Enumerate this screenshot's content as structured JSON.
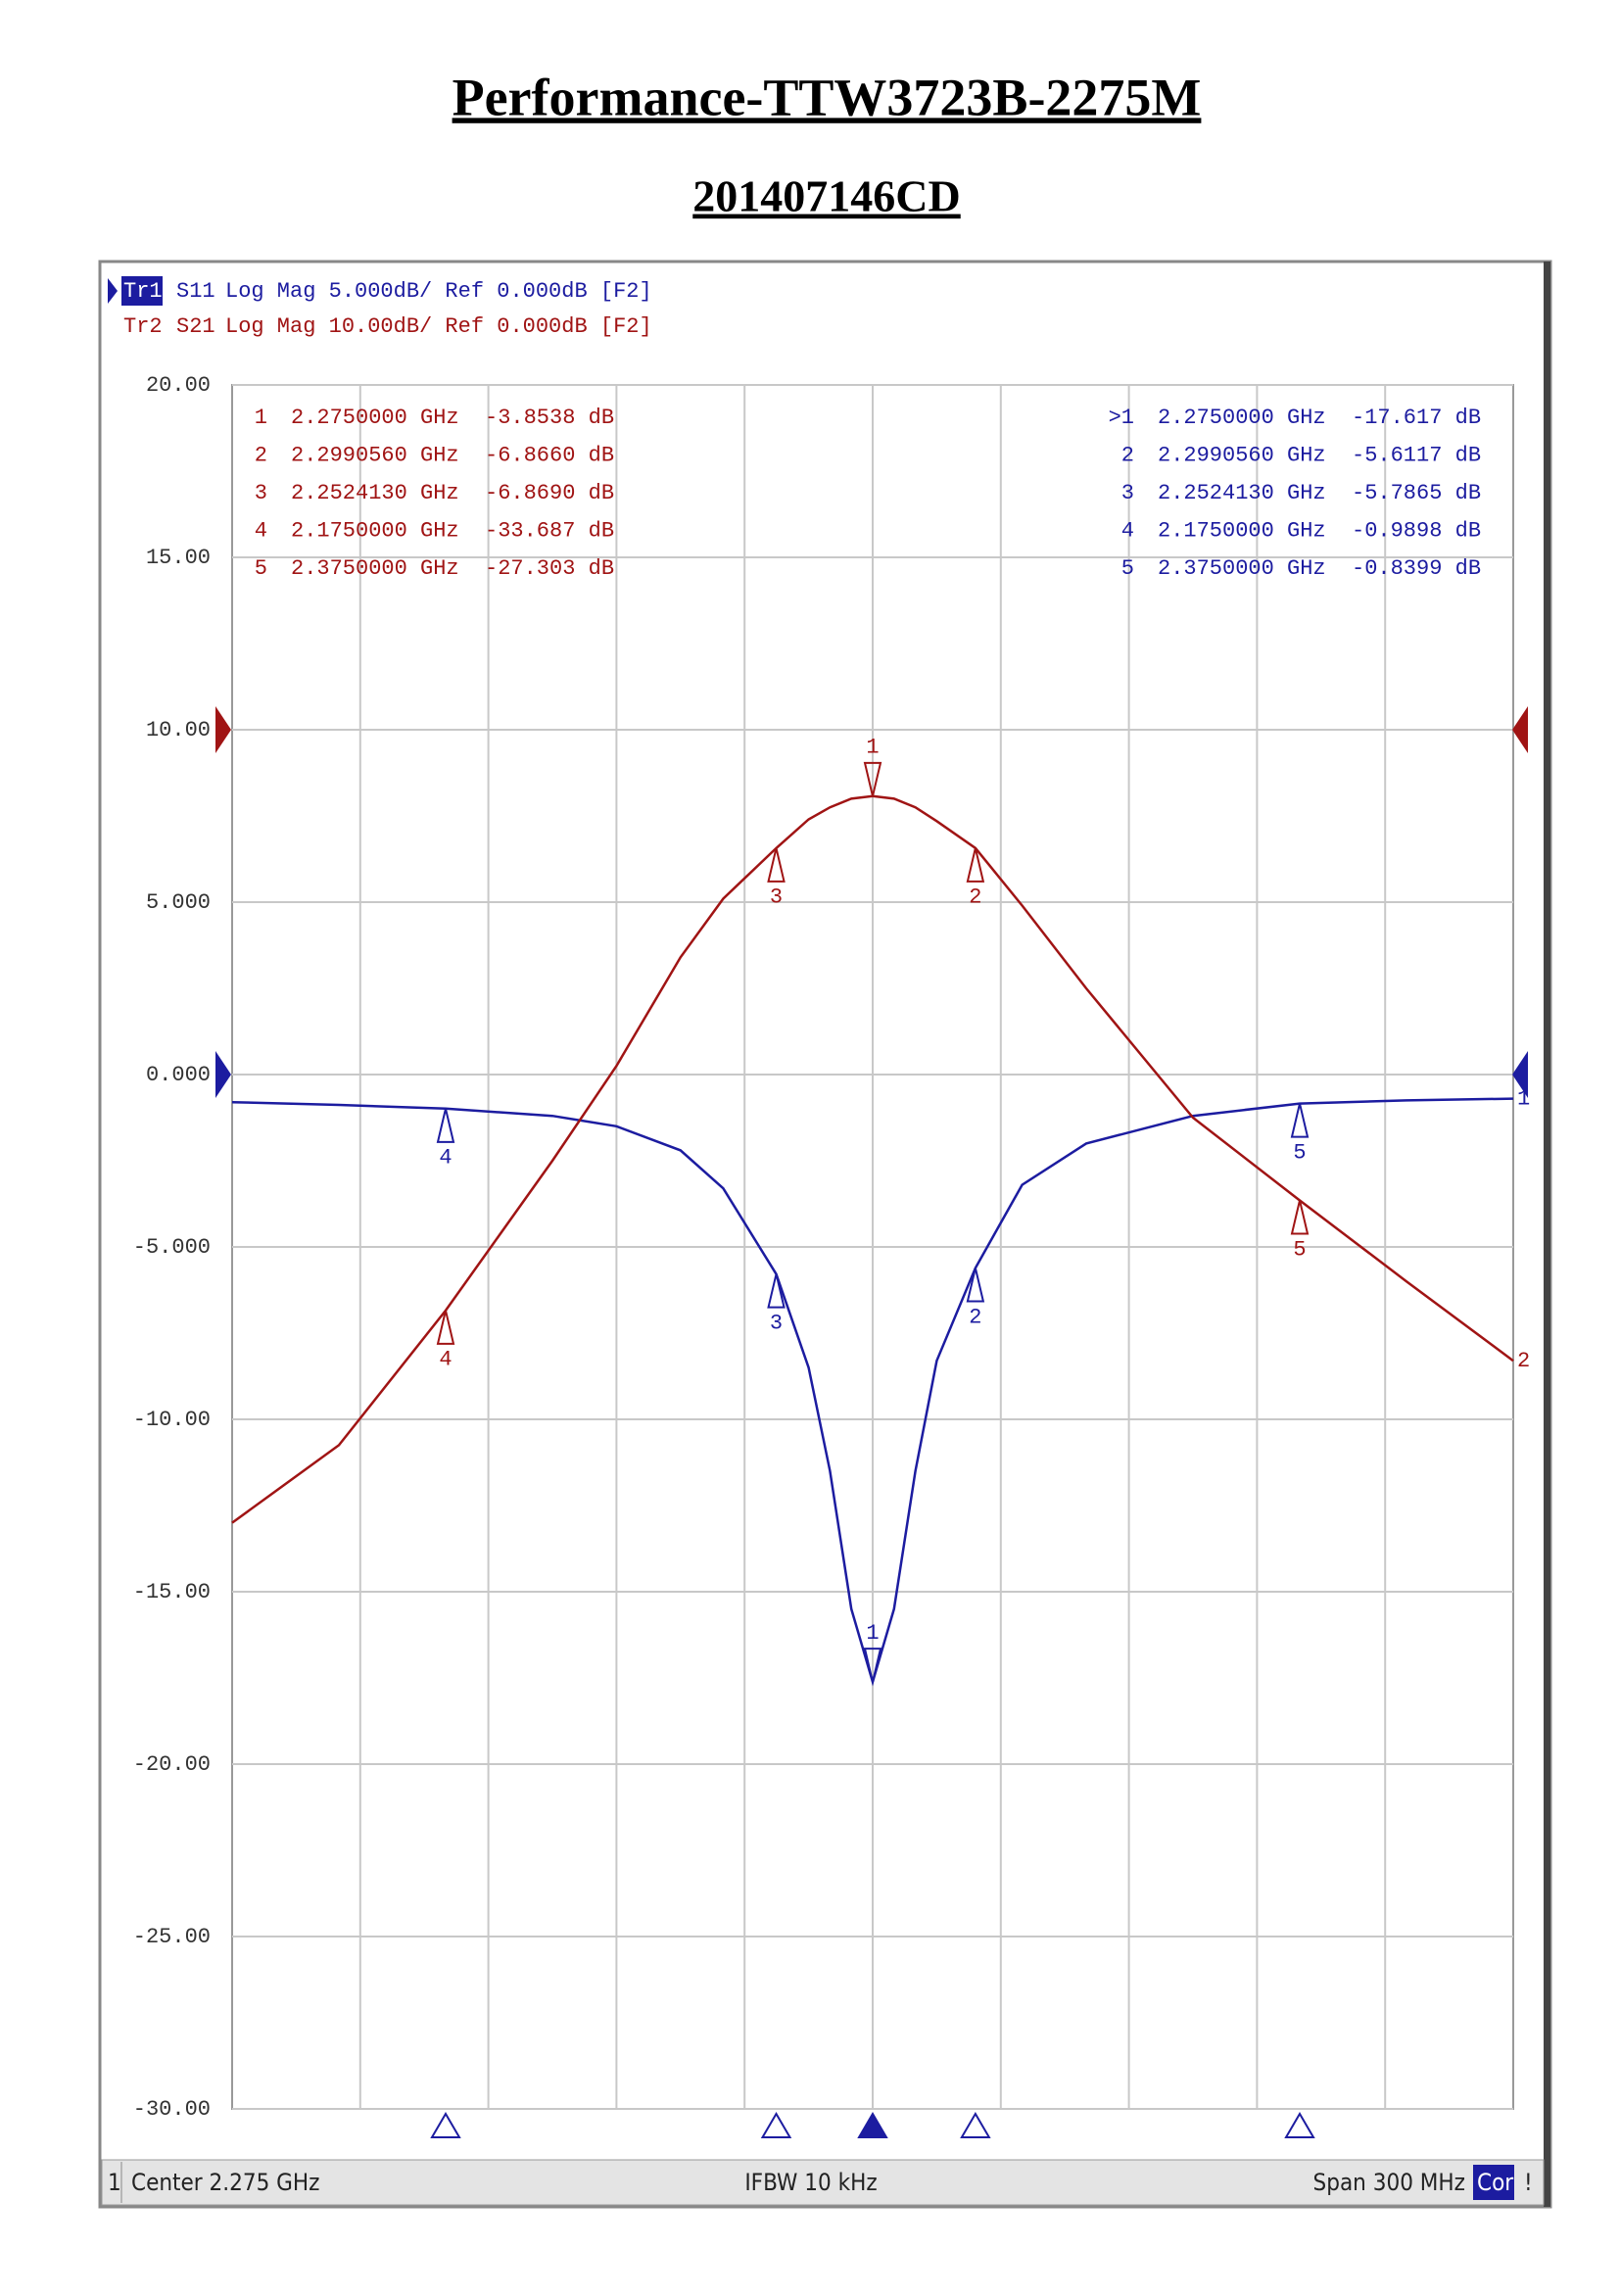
{
  "chart_data": {
    "type": "line",
    "title": "Performance-TTW3723B-2275M",
    "subtitle": "201407146CD",
    "x": [
      2.125,
      2.15,
      2.175,
      2.2,
      2.215,
      2.23,
      2.24,
      2.252413,
      2.26,
      2.265,
      2.27,
      2.275,
      2.28,
      2.285,
      2.29,
      2.299056,
      2.31,
      2.325,
      2.35,
      2.375,
      2.4,
      2.425
    ],
    "xlim": [
      2.125,
      2.425
    ],
    "ylim": [
      -30,
      20
    ],
    "yticks": [
      {
        "value": 20,
        "label": "20.00"
      },
      {
        "value": 15,
        "label": "15.00"
      },
      {
        "value": 10,
        "label": "10.00"
      },
      {
        "value": 5,
        "label": "5.000"
      },
      {
        "value": 0,
        "label": "0.000"
      },
      {
        "value": -5,
        "label": "-5.000"
      },
      {
        "value": -10,
        "label": "-10.00"
      },
      {
        "value": -15,
        "label": "-15.00"
      },
      {
        "value": -20,
        "label": "-20.00"
      },
      {
        "value": -25,
        "label": "-25.00"
      },
      {
        "value": -30,
        "label": "-30.00"
      }
    ],
    "y2lim": [
      -80,
      20
    ],
    "grid": true,
    "series": [
      {
        "trace": "Tr1",
        "name": "S11",
        "format": "Log Mag 5.000dB/ Ref 0.000dB [F2]",
        "end_label": "1",
        "color": "#1c1ca0",
        "values": [
          -0.8,
          -0.88,
          -0.9898,
          -1.2,
          -1.5,
          -2.2,
          -3.3,
          -5.7865,
          -8.5,
          -11.5,
          -15.5,
          -17.617,
          -15.5,
          -11.5,
          -8.3,
          -5.6117,
          -3.2,
          -2.0,
          -1.2,
          -0.8399,
          -0.75,
          -0.7
        ],
        "markers": [
          {
            "label": ">1",
            "freq": "2.2750000 GHz",
            "value": "-17.617 dB"
          },
          {
            "label": "2",
            "freq": "2.2990560 GHz",
            "value": "-5.6117 dB"
          },
          {
            "label": "3",
            "freq": "2.2524130 GHz",
            "value": "-5.7865 dB"
          },
          {
            "label": "4",
            "freq": "2.1750000 GHz",
            "value": "-0.9898 dB"
          },
          {
            "label": "5",
            "freq": "2.3750000 GHz",
            "value": "-0.8399 dB"
          }
        ]
      },
      {
        "trace": "Tr2",
        "name": "S21",
        "format": "Log Mag 10.00dB/ Ref 0.000dB [F2]",
        "end_label": "2",
        "color": "#a01414",
        "axis": "y2",
        "values": [
          -46,
          -41.5,
          -33.687,
          -25,
          -19.5,
          -13.2,
          -9.8,
          -6.869,
          -5.2,
          -4.5,
          -4.0,
          -3.8538,
          -4.0,
          -4.5,
          -5.3,
          -6.866,
          -10.2,
          -15,
          -22.5,
          -27.303,
          -32,
          -36.6
        ],
        "markers": [
          {
            "label": "1",
            "freq": "2.2750000 GHz",
            "value": "-3.8538 dB"
          },
          {
            "label": "2",
            "freq": "2.2990560 GHz",
            "value": "-6.8660 dB"
          },
          {
            "label": "3",
            "freq": "2.2524130 GHz",
            "value": "-6.8690 dB"
          },
          {
            "label": "4",
            "freq": "2.1750000 GHz",
            "value": "-33.687 dB"
          },
          {
            "label": "5",
            "freq": "2.3750000 GHz",
            "value": "-27.303 dB"
          }
        ]
      }
    ],
    "footer": {
      "channel": "1",
      "center": "Center 2.275 GHz",
      "ifbw": "IFBW 10 kHz",
      "span": "Span 300 MHz",
      "cor": "Cor",
      "alert": "!"
    }
  }
}
